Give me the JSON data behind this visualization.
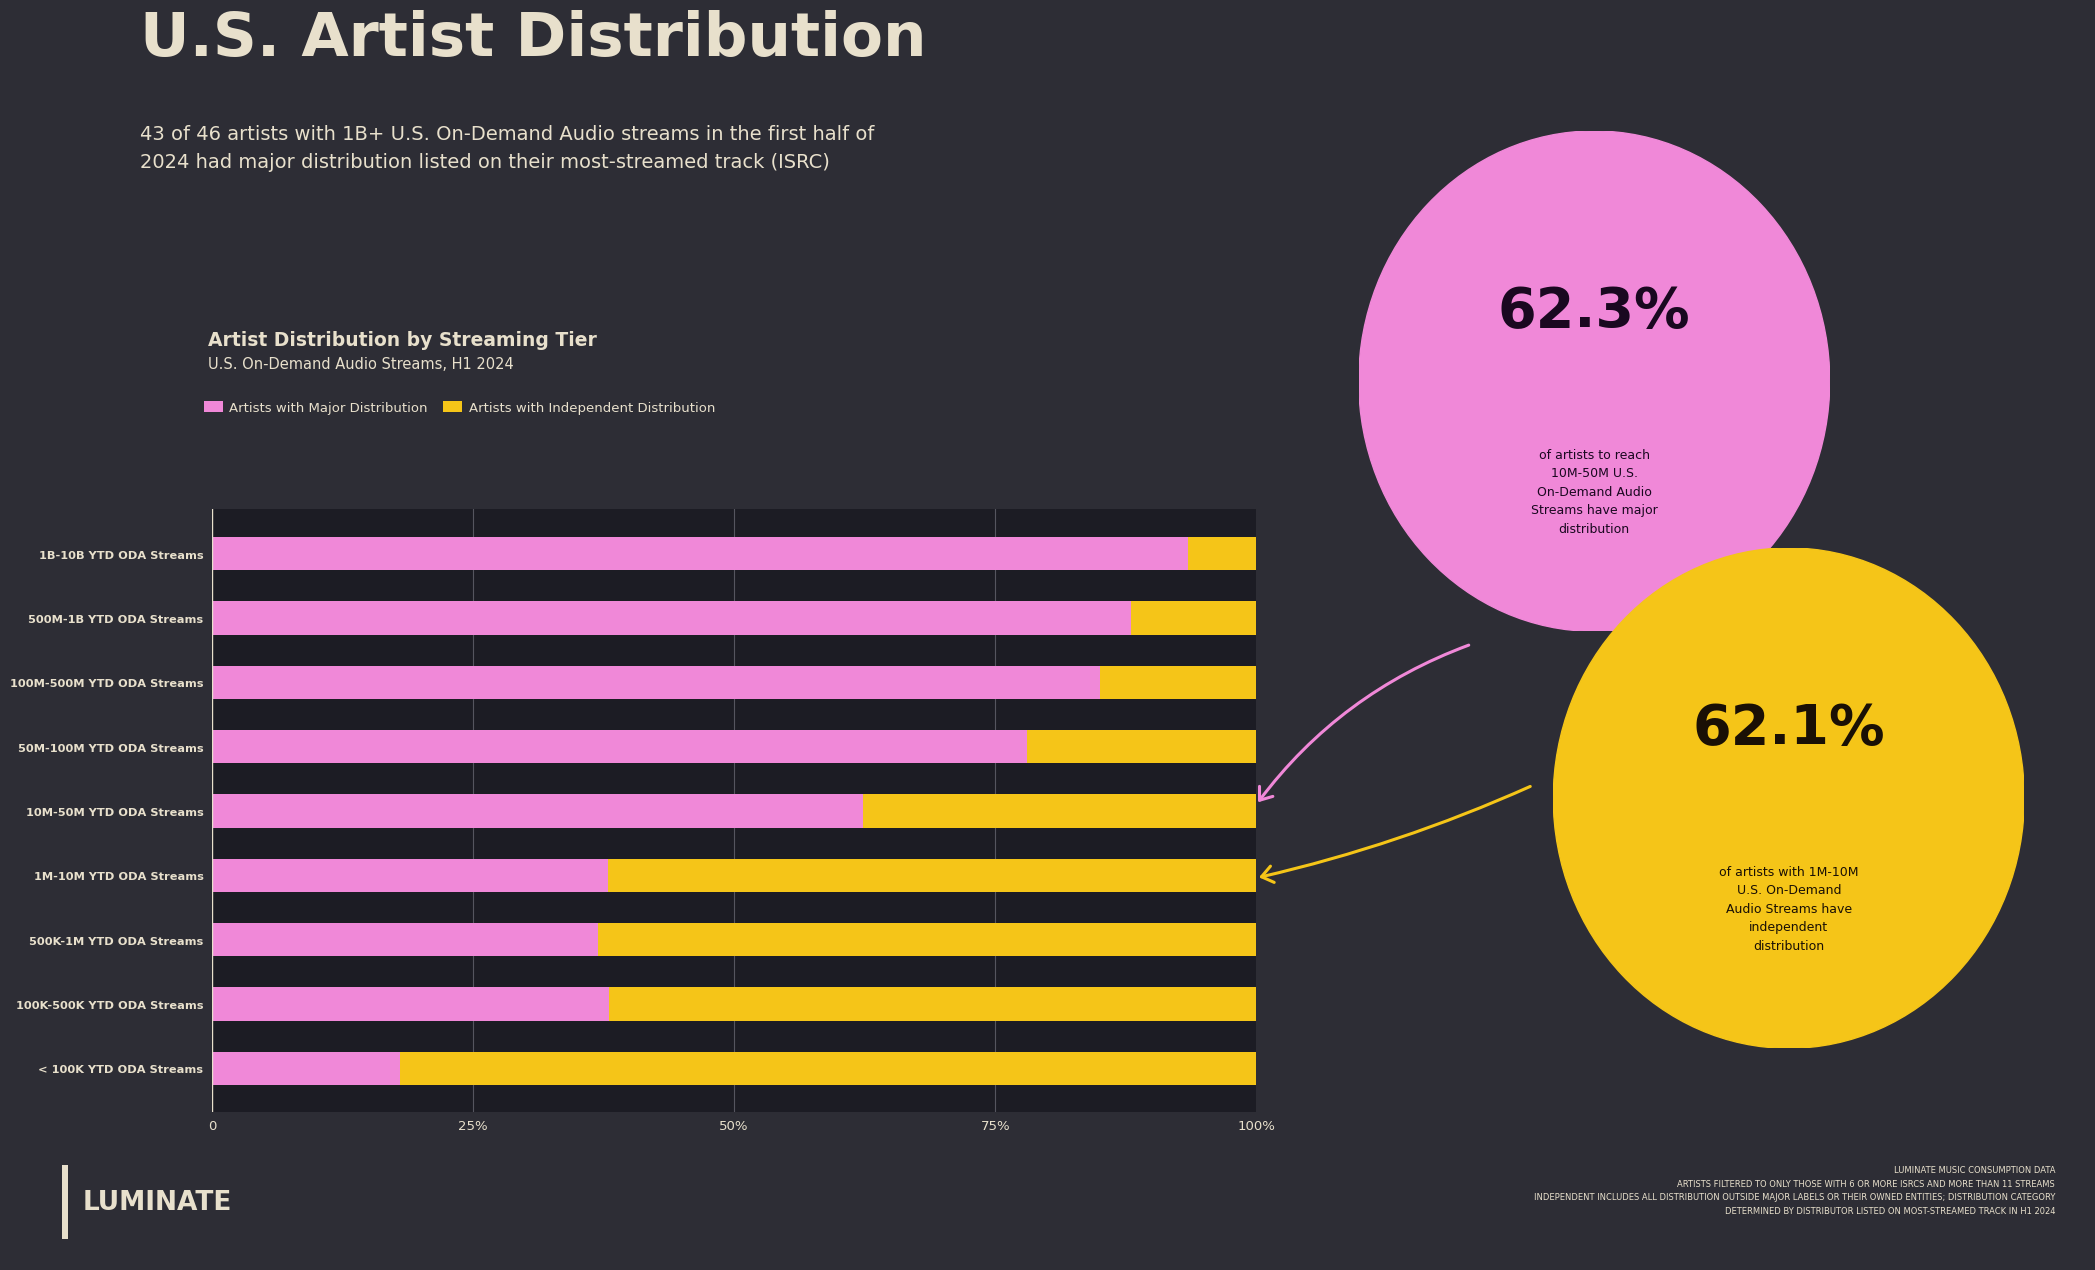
{
  "title": "U.S. Artist Distribution",
  "subtitle": "43 of 46 artists with 1B+ U.S. On-Demand Audio streams in the first half of\n2024 had major distribution listed on their most-streamed track (ISRC)",
  "chart_title": "Artist Distribution by Streaming Tier",
  "chart_subtitle": "U.S. On-Demand Audio Streams, H1 2024",
  "legend_major": "Artists with Major Distribution",
  "legend_indep": "Artists with Independent Distribution",
  "categories": [
    "1B-10B YTD ODA Streams",
    "500M-1B YTD ODA Streams",
    "100M-500M YTD ODA Streams",
    "50M-100M YTD ODA Streams",
    "10M-50M YTD ODA Streams",
    "1M-10M YTD ODA Streams",
    "500K-1M YTD ODA Streams",
    "100K-500K YTD ODA Streams",
    "< 100K YTD ODA Streams"
  ],
  "major_pct": [
    93.5,
    88.0,
    85.0,
    78.0,
    62.3,
    37.9,
    37.0,
    38.0,
    18.0
  ],
  "indep_pct": [
    6.5,
    12.0,
    15.0,
    22.0,
    37.7,
    62.1,
    63.0,
    62.0,
    82.0
  ],
  "color_major": "#f088d8",
  "color_indep": "#f5c518",
  "bg_color": "#2d2d35",
  "text_color": "#e8e0cc",
  "footer_bg": "#0d2030",
  "bubble_pink": "#f088d8",
  "bubble_yellow": "#f5c518",
  "stat1_pct": "62.3%",
  "stat1_sub": "of artists to reach\n10M-50M U.S.\nOn-Demand Audio\nStreams have major\ndistribution",
  "stat2_pct": "62.1%",
  "stat2_sub": "of artists with 1M-10M\nU.S. On-Demand\nAudio Streams have\nindependent\ndistribution",
  "footer_note": "LUMINATE MUSIC CONSUMPTION DATA\nARTISTS FILTERED TO ONLY THOSE WITH 6 OR MORE ISRCS AND MORE THAN 11 STREAMS\nINDEPENDENT INCLUDES ALL DISTRIBUTION OUTSIDE MAJOR LABELS OR THEIR OWNED ENTITIES; DISTRIBUTION CATEGORY\nDETERMINED BY DISTRIBUTOR LISTED ON MOST-STREAMED TRACK IN H1 2024",
  "xtick_labels": [
    "0",
    "25%",
    "50%",
    "75%",
    "100%"
  ],
  "xtick_vals": [
    0,
    25,
    50,
    75,
    100
  ]
}
